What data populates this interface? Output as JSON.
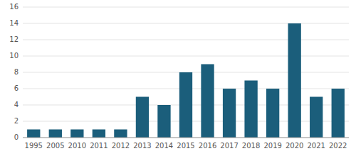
{
  "chart_data": {
    "type": "bar",
    "categories": [
      "1995",
      "2005",
      "2010",
      "2011",
      "2012",
      "2013",
      "2014",
      "2015",
      "2016",
      "2017",
      "2018",
      "2019",
      "2020",
      "2021",
      "2022"
    ],
    "values": [
      1,
      1,
      1,
      1,
      1,
      5,
      4,
      8,
      9,
      6,
      7,
      6,
      14,
      5,
      6
    ],
    "color": "#1b5e7b",
    "ylim": [
      0,
      16
    ],
    "yticks": [
      0,
      2,
      4,
      6,
      8,
      10,
      12,
      14,
      16
    ],
    "grid": true
  }
}
